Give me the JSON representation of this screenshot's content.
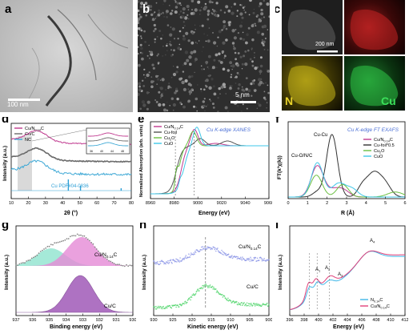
{
  "panels": {
    "a": {
      "letter": "a",
      "scale_bar": "100 nm"
    },
    "b": {
      "letter": "b",
      "scale_bar": "5 nm"
    },
    "c": {
      "letter": "c",
      "scale_bar": "200 nm",
      "map_labels": [
        "N",
        "Cu"
      ]
    },
    "d": {
      "letter": "d"
    },
    "e": {
      "letter": "e"
    },
    "f": {
      "letter": "f"
    },
    "g": {
      "letter": "g"
    },
    "h": {
      "letter": "h"
    },
    "i": {
      "letter": "i"
    }
  },
  "chart_data": [
    {
      "id": "d",
      "type": "line",
      "title": "",
      "xlabel": "2θ (°)",
      "ylabel": "Intensity (a.u.)",
      "xlim": [
        10,
        80
      ],
      "x_ticks": [
        "10",
        "20",
        "30",
        "40",
        "50",
        "60",
        "70",
        "80"
      ],
      "series": [
        {
          "name": "Cu/N0.14C",
          "color": "#c0398f",
          "values_desc": "broad peak ~25°"
        },
        {
          "name": "Cu/C",
          "color": "#6b6b6b",
          "values_desc": "broad peak ~25°"
        },
        {
          "name": "NC",
          "color": "#3fa9d6",
          "values_desc": "broad peak ~25°"
        }
      ],
      "legend": [
        "Cu/N",
        "Cu/C",
        "NC"
      ],
      "legend_sub": "0.14",
      "reference": {
        "name": "Cu PDF#04-0836",
        "color": "#2d9fd6",
        "positions": [
          43.3,
          50.4,
          74.1
        ]
      },
      "inset_ticks": [
        "36",
        "40",
        "44",
        "48"
      ]
    },
    {
      "id": "e",
      "type": "line",
      "title": "Cu K-edge XANES",
      "xlabel": "Energy (eV)",
      "ylabel": "Normalized Absorption (arb. units)",
      "xlim": [
        8960,
        9060
      ],
      "x_ticks": [
        "8960",
        "8980",
        "9000",
        "9020",
        "9040",
        "9060"
      ],
      "series": [
        {
          "name": "Cu/N0.14C",
          "color": "#c0398f"
        },
        {
          "name": "Cu-foil",
          "color": "#555555"
        },
        {
          "name": "Cu2O",
          "color": "#6abf40"
        },
        {
          "name": "CuO",
          "color": "#3fc7e8"
        }
      ],
      "legend": [
        "Cu/N",
        "Cu-foil",
        "Cu",
        "CuO"
      ],
      "legend_subs": [
        "0.14",
        "2"
      ]
    },
    {
      "id": "f",
      "type": "line",
      "title": "Cu K-edge FT EXAFS",
      "xlabel": "R (Å)",
      "ylabel": "FT(k³χ(k))",
      "xlim": [
        0,
        6
      ],
      "x_ticks": [
        "0",
        "1",
        "2",
        "3",
        "4",
        "5",
        "6"
      ],
      "series": [
        {
          "name": "Cu/N0.14C",
          "color": "#c0398f"
        },
        {
          "name": "Cu-foil*0.5",
          "color": "#333333"
        },
        {
          "name": "Cu2O",
          "color": "#6abf40"
        },
        {
          "name": "CuO",
          "color": "#3fc7e8"
        }
      ],
      "annotations": [
        "Cu-Cu",
        "Cu-O/N/C"
      ],
      "legend": [
        "Cu/N",
        "Cu-foil*0.5",
        "Cu",
        "CuO"
      ],
      "legend_subs": [
        "0.14",
        "2"
      ]
    },
    {
      "id": "g",
      "type": "area",
      "xlabel": "Binding energy (eV)",
      "ylabel": "Intensity (a.u.)",
      "xlim": [
        937,
        929
      ],
      "x_ticks": [
        "937",
        "936",
        "935",
        "934",
        "933",
        "932",
        "931",
        "930"
      ],
      "series": [
        {
          "name": "Cu/N0.14C",
          "color": "#e58ad6",
          "peaks": [
            934.6,
            932.5
          ]
        },
        {
          "name": "Cu/C",
          "color": "#9b4fb4",
          "peaks": [
            932.6
          ]
        }
      ],
      "labels": [
        "Cu/N",
        "Cu/C"
      ],
      "label_sub": "0.14"
    },
    {
      "id": "h",
      "type": "scatter",
      "xlabel": "Kinetic energy (eV)",
      "ylabel": "Intensity (a.u.)",
      "xlim": [
        930,
        900
      ],
      "x_ticks": [
        "930",
        "925",
        "920",
        "915",
        "910",
        "905",
        "900"
      ],
      "series": [
        {
          "name": "Cu/N0.14C",
          "color": "#8a93e6",
          "peak": 916.5
        },
        {
          "name": "Cu/C",
          "color": "#4fd46a",
          "peak": 916.5
        }
      ],
      "labels": [
        "Cu/N",
        "Cu/C"
      ],
      "label_sub": "0.14"
    },
    {
      "id": "i",
      "type": "line",
      "xlabel": "Energy (eV)",
      "ylabel": "Intensity (a.u.)",
      "xlim": [
        396,
        412
      ],
      "x_ticks": [
        "396",
        "398",
        "400",
        "402",
        "404",
        "406",
        "408",
        "410",
        "412"
      ],
      "series": [
        {
          "name": "N0.14C",
          "color": "#3fb7e8"
        },
        {
          "name": "Cu/N0.14C",
          "color": "#e0407a"
        }
      ],
      "annotations": [
        "A",
        "A",
        "A",
        "A"
      ],
      "annotation_subs": [
        "1",
        "2",
        "3",
        "4"
      ],
      "legend": [
        "N",
        "Cu/N"
      ],
      "legend_sub": "0.14"
    }
  ]
}
